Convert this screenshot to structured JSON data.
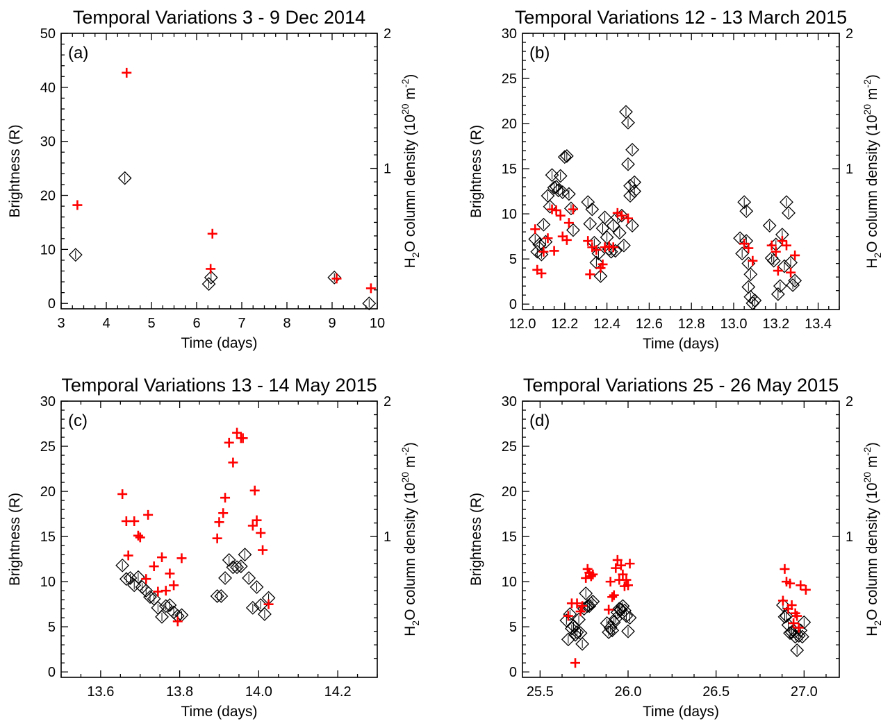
{
  "chart_data": [
    {
      "type": "scatter",
      "panel_label": "(a)",
      "title": "Temporal Variations 3 - 9 Dec 2014",
      "xlabel": "Time (days)",
      "ylabel": "Brightness (R)",
      "y2label": "H2O column density (10^20 m^-2)",
      "y2label_parts": {
        "h": "H",
        "sub": "2",
        "rest": "O column density (10",
        "exp1": "20",
        "mid": " m",
        "exp2": "-2",
        "close": ")"
      },
      "xlim": [
        3,
        10
      ],
      "ylim": [
        -1,
        50
      ],
      "y2lim": [
        -0.04,
        2
      ],
      "xticks": [
        3,
        4,
        5,
        6,
        7,
        8,
        9,
        10
      ],
      "xticklabels": [
        "3",
        "4",
        "5",
        "6",
        "7",
        "8",
        "9",
        "10"
      ],
      "yticks": [
        0,
        10,
        20,
        30,
        40,
        50
      ],
      "yticklabels": [
        "0",
        "10",
        "20",
        "30",
        "40",
        "50"
      ],
      "y2ticks": [
        1,
        2
      ],
      "y2ticklabels": [
        "1",
        "2"
      ],
      "series": [
        {
          "marker": "diamond",
          "color": "#000000",
          "axis": "left",
          "x": [
            3.32,
            4.41,
            6.27,
            6.32,
            9.05,
            9.82
          ],
          "y": [
            9.0,
            23.2,
            3.6,
            4.8,
            4.8,
            0.0
          ]
        },
        {
          "marker": "plus",
          "color": "#ff0000",
          "axis": "left",
          "x": [
            3.36,
            4.45,
            6.31,
            6.35,
            9.1,
            9.86
          ],
          "y": [
            18.2,
            42.7,
            6.4,
            12.9,
            4.6,
            2.8
          ]
        }
      ]
    },
    {
      "type": "scatter",
      "panel_label": "(b)",
      "title": "Temporal Variations 12 - 13 March 2015",
      "xlabel": "Time (days)",
      "ylabel": "Brightness (R)",
      "y2label": "H2O column density (10^20 m^-2)",
      "y2label_parts": {
        "h": "H",
        "sub": "2",
        "rest": "O column density (10",
        "exp1": "20",
        "mid": " m",
        "exp2": "-2",
        "close": ")"
      },
      "xlim": [
        12.0,
        13.5
      ],
      "ylim": [
        -0.6,
        30
      ],
      "y2lim": [
        -0.04,
        2
      ],
      "xticks": [
        12.0,
        12.2,
        12.4,
        12.6,
        12.8,
        13.0,
        13.2,
        13.4
      ],
      "xticklabels": [
        "12.0",
        "12.2",
        "12.4",
        "12.6",
        "12.8",
        "13.0",
        "13.2",
        "13.4"
      ],
      "yticks": [
        0,
        5,
        10,
        15,
        20,
        25,
        30
      ],
      "yticklabels": [
        "0",
        "5",
        "10",
        "15",
        "20",
        "25",
        "30"
      ],
      "y2ticks": [
        1,
        2
      ],
      "y2ticklabels": [
        "1",
        "2"
      ],
      "series": [
        {
          "marker": "diamond",
          "color": "#000000",
          "axis": "left",
          "x": [
            12.06,
            12.07,
            12.08,
            12.09,
            12.1,
            12.11,
            12.12,
            12.13,
            12.14,
            12.15,
            12.16,
            12.17,
            12.18,
            12.19,
            12.2,
            12.21,
            12.22,
            12.23,
            12.24,
            12.31,
            12.32,
            12.33,
            12.34,
            12.35,
            12.36,
            12.37,
            12.38,
            12.39,
            12.4,
            12.41,
            12.42,
            12.43,
            12.44,
            12.45,
            12.46,
            12.47,
            12.48,
            12.49,
            12.5,
            12.5,
            12.51,
            12.51,
            12.52,
            12.52,
            12.53,
            12.53,
            13.03,
            13.04,
            13.05,
            13.06,
            13.06,
            13.07,
            13.07,
            13.08,
            13.08,
            13.09,
            13.1,
            13.17,
            13.18,
            13.19,
            13.2,
            13.21,
            13.22,
            13.23,
            13.24,
            13.25,
            13.26,
            13.27,
            13.28,
            13.29
          ],
          "y": [
            7.2,
            5.8,
            6.6,
            5.5,
            8.8,
            6.9,
            12.0,
            10.8,
            14.3,
            12.9,
            13.0,
            12.6,
            14.2,
            12.4,
            16.3,
            16.4,
            12.2,
            10.6,
            8.2,
            11.3,
            8.9,
            10.5,
            6.8,
            4.6,
            5.6,
            3.1,
            8.4,
            9.6,
            7.4,
            6.1,
            5.8,
            8.7,
            5.9,
            9.6,
            7.9,
            9.8,
            6.5,
            21.3,
            15.5,
            20.1,
            13.1,
            12.0,
            17.1,
            8.7,
            12.5,
            13.5,
            7.3,
            5.6,
            11.3,
            7.0,
            10.3,
            4.5,
            1.9,
            0.8,
            3.3,
            0.1,
            0.4,
            8.7,
            5.1,
            4.8,
            6.6,
            1.1,
            2.0,
            7.7,
            4.2,
            11.3,
            10.1,
            4.6,
            2.1,
            2.6
          ]
        },
        {
          "marker": "plus",
          "color": "#ff0000",
          "axis": "left",
          "x": [
            12.06,
            12.07,
            12.09,
            12.1,
            12.12,
            12.14,
            12.15,
            12.16,
            12.18,
            12.19,
            12.21,
            12.22,
            12.24,
            12.31,
            12.32,
            12.33,
            12.35,
            12.37,
            12.38,
            12.39,
            12.41,
            12.43,
            12.45,
            12.47,
            12.5,
            13.05,
            13.07,
            13.09,
            13.18,
            13.2,
            13.21,
            13.23,
            13.25,
            13.27,
            13.29
          ],
          "y": [
            8.3,
            3.8,
            3.4,
            5.8,
            7.3,
            10.5,
            5.9,
            10.4,
            9.8,
            7.5,
            7.1,
            9.0,
            10.5,
            7.0,
            3.3,
            6.3,
            6.0,
            4.0,
            4.4,
            6.3,
            6.4,
            6.3,
            10.1,
            9.8,
            9.5,
            6.7,
            6.2,
            4.8,
            6.5,
            5.8,
            3.7,
            7.0,
            6.5,
            3.5,
            5.4
          ]
        }
      ]
    },
    {
      "type": "scatter",
      "panel_label": "(c)",
      "title": "Temporal Variations 13 - 14 May 2015",
      "xlabel": "Time (days)",
      "ylabel": "Brightness (R)",
      "y2label": "H2O column density (10^20 m^-2)",
      "y2label_parts": {
        "h": "H",
        "sub": "2",
        "rest": "O column density (10",
        "exp1": "20",
        "mid": " m",
        "exp2": "-2",
        "close": ")"
      },
      "xlim": [
        13.5,
        14.3
      ],
      "ylim": [
        -0.6,
        30
      ],
      "y2lim": [
        -0.04,
        2
      ],
      "xticks": [
        13.6,
        13.8,
        14.0,
        14.2
      ],
      "xticklabels": [
        "13.6",
        "13.8",
        "14.0",
        "14.2"
      ],
      "yticks": [
        0,
        5,
        10,
        15,
        20,
        25,
        30
      ],
      "yticklabels": [
        "0",
        "5",
        "10",
        "15",
        "20",
        "25",
        "30"
      ],
      "y2ticks": [
        1,
        2
      ],
      "y2ticklabels": [
        "1",
        "2"
      ],
      "series": [
        {
          "marker": "diamond",
          "color": "#000000",
          "axis": "left",
          "x": [
            13.655,
            13.665,
            13.675,
            13.685,
            13.695,
            13.705,
            13.715,
            13.725,
            13.735,
            13.745,
            13.755,
            13.765,
            13.775,
            13.785,
            13.795,
            13.805,
            13.895,
            13.905,
            13.915,
            13.925,
            13.935,
            13.945,
            13.955,
            13.965,
            13.975,
            13.985,
            13.995,
            14.005,
            14.015,
            14.025
          ],
          "y": [
            11.8,
            10.3,
            10.4,
            9.6,
            10.5,
            9.4,
            9.0,
            8.3,
            8.1,
            7.1,
            6.1,
            7.3,
            7.4,
            6.6,
            6.2,
            6.3,
            8.4,
            8.4,
            10.4,
            12.4,
            11.6,
            11.6,
            11.7,
            13.0,
            10.4,
            7.1,
            9.4,
            7.4,
            6.4,
            8.2
          ]
        },
        {
          "marker": "plus",
          "color": "#ff0000",
          "axis": "left",
          "x": [
            13.655,
            13.665,
            13.67,
            13.685,
            13.695,
            13.7,
            13.715,
            13.72,
            13.735,
            13.745,
            13.755,
            13.765,
            13.775,
            13.785,
            13.795,
            13.805,
            13.895,
            13.9,
            13.91,
            13.915,
            13.925,
            13.935,
            13.945,
            13.955,
            13.96,
            13.985,
            13.99,
            13.995,
            14.005,
            14.01,
            14.025
          ],
          "y": [
            19.7,
            16.7,
            12.9,
            16.7,
            15.1,
            14.9,
            10.3,
            17.4,
            11.7,
            8.9,
            12.7,
            9.0,
            10.9,
            9.6,
            5.6,
            12.6,
            14.8,
            16.6,
            17.6,
            19.3,
            25.4,
            23.2,
            26.5,
            25.9,
            25.9,
            16.2,
            20.1,
            16.8,
            15.4,
            13.5,
            7.5
          ]
        }
      ]
    },
    {
      "type": "scatter",
      "panel_label": "(d)",
      "title": "Temporal Variations 25 - 26 May 2015",
      "xlabel": "Time (days)",
      "ylabel": "Brightness (R)",
      "y2label": "H2O column density (10^20 m^-2)",
      "y2label_parts": {
        "h": "H",
        "sub": "2",
        "rest": "O column density (10",
        "exp1": "20",
        "mid": " m",
        "exp2": "-2",
        "close": ")"
      },
      "xlim": [
        25.4,
        27.2
      ],
      "ylim": [
        -0.6,
        30
      ],
      "y2lim": [
        -0.04,
        2
      ],
      "xticks": [
        25.5,
        26.0,
        26.5,
        27.0
      ],
      "xticklabels": [
        "25.5",
        "26.0",
        "26.5",
        "27.0"
      ],
      "yticks": [
        0,
        5,
        10,
        15,
        20,
        25,
        30
      ],
      "yticklabels": [
        "0",
        "5",
        "10",
        "15",
        "20",
        "25",
        "30"
      ],
      "y2ticks": [
        1,
        2
      ],
      "y2ticklabels": [
        "1",
        "2"
      ],
      "series": [
        {
          "marker": "diamond",
          "color": "#000000",
          "axis": "left",
          "x": [
            25.65,
            25.66,
            25.67,
            25.68,
            25.69,
            25.7,
            25.71,
            25.72,
            25.73,
            25.74,
            25.75,
            25.76,
            25.77,
            25.78,
            25.79,
            25.8,
            25.88,
            25.89,
            25.9,
            25.91,
            25.92,
            25.93,
            25.94,
            25.95,
            25.96,
            25.97,
            25.98,
            25.99,
            26.0,
            26.01,
            26.88,
            26.89,
            26.9,
            26.91,
            26.92,
            26.93,
            26.94,
            26.95,
            26.96,
            26.97,
            26.98,
            26.99,
            27.0
          ],
          "y": [
            5.7,
            3.6,
            6.4,
            4.8,
            5.1,
            4.1,
            4.4,
            5.8,
            4.3,
            3.1,
            7.0,
            8.7,
            7.3,
            7.3,
            7.6,
            7.8,
            5.4,
            4.4,
            4.9,
            4.6,
            5.5,
            5.9,
            6.6,
            7.0,
            6.9,
            7.3,
            6.8,
            6.2,
            4.5,
            6.0,
            7.4,
            6.1,
            6.2,
            5.2,
            4.3,
            4.4,
            4.6,
            3.9,
            2.4,
            4.0,
            4.6,
            3.9,
            5.5
          ]
        },
        {
          "marker": "plus",
          "color": "#ff0000",
          "axis": "left",
          "x": [
            25.66,
            25.68,
            25.7,
            25.71,
            25.73,
            25.74,
            25.76,
            25.77,
            25.78,
            25.79,
            25.8,
            25.89,
            25.9,
            25.91,
            25.92,
            25.93,
            25.94,
            25.95,
            25.96,
            25.97,
            25.98,
            25.99,
            26.0,
            26.01,
            26.88,
            26.89,
            26.9,
            26.91,
            26.92,
            26.93,
            26.94,
            26.95,
            26.96,
            26.97,
            26.98,
            27.01
          ],
          "y": [
            6.2,
            7.6,
            1.0,
            7.6,
            6.7,
            7.3,
            10.4,
            11.4,
            11.0,
            10.6,
            10.8,
            6.9,
            10.0,
            8.3,
            8.5,
            11.5,
            12.4,
            10.2,
            11.8,
            10.8,
            9.5,
            10.2,
            9.6,
            12.0,
            7.9,
            11.4,
            10.0,
            7.0,
            9.8,
            7.4,
            5.4,
            6.5,
            6.2,
            4.9,
            9.6,
            9.1
          ]
        }
      ]
    }
  ]
}
